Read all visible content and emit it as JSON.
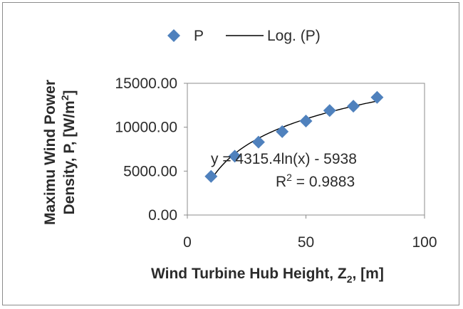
{
  "chart_data": {
    "type": "scatter",
    "title": "",
    "xlabel": "Wind Turbine Hub Height, Z",
    "xlabel_sub": "2",
    "xlabel_suffix": ", [m]",
    "ylabel_line1": "Maximu Wind Power",
    "ylabel_line2": "Density, P, [W/m",
    "ylabel_sup": "2",
    "ylabel_suffix": "]",
    "xlim": [
      0,
      100
    ],
    "ylim": [
      0,
      15000
    ],
    "x_ticks": [
      0,
      50,
      100
    ],
    "x_tick_labels": [
      "0",
      "50",
      "100"
    ],
    "y_ticks": [
      0,
      5000,
      10000,
      15000
    ],
    "y_tick_labels": [
      "0.00",
      "5000.00",
      "10000.00",
      "15000.00"
    ],
    "grid": false,
    "legend_position": "top",
    "series": [
      {
        "name": "P",
        "marker": "diamond",
        "color": "#4f81bd",
        "x": [
          10,
          20,
          30,
          40,
          50,
          60,
          70,
          80
        ],
        "y": [
          4400,
          6700,
          8300,
          9500,
          10700,
          11900,
          12400,
          13400
        ]
      }
    ],
    "trendline": {
      "name": "Log. (P)",
      "color": "#000000",
      "a": 4315.4,
      "b": -5938,
      "x_range": [
        10,
        80
      ]
    },
    "annotations": {
      "equation": "y = 4315.4ln(x) - 5938",
      "r2_prefix": "R",
      "r2_sup": "2",
      "r2_suffix": " = 0.9883"
    }
  }
}
